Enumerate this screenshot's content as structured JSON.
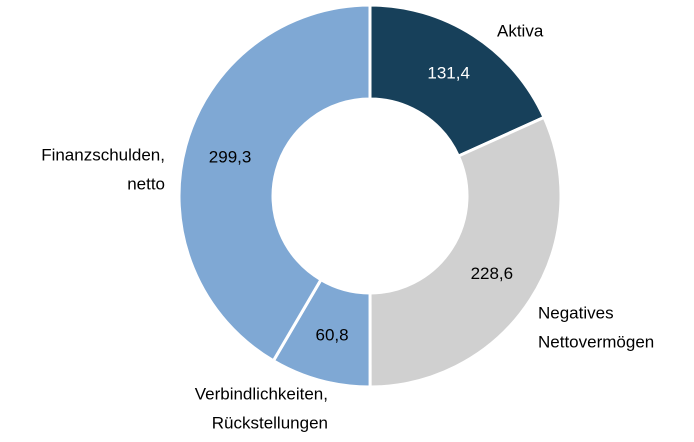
{
  "chart_data": {
    "type": "donut",
    "categories": [
      [
        "Aktiva"
      ],
      [
        "Negatives",
        "Nettovermögen"
      ],
      [
        "Verbindlichkeiten,",
        "Rückstellungen"
      ],
      [
        "Finanzschulden,",
        "netto"
      ]
    ],
    "values": [
      131.4,
      228.6,
      60.8,
      299.3
    ],
    "value_labels": [
      "131,4",
      "228,6",
      "60,8",
      "299,3"
    ],
    "colors": [
      "#17405a",
      "#d0d0d0",
      "#7fa8d4",
      "#7fa8d4"
    ]
  }
}
